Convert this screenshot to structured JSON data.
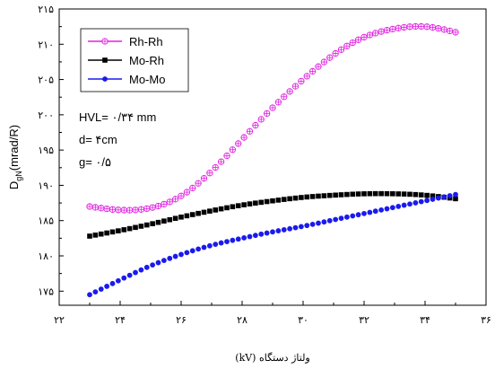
{
  "chart_data": {
    "type": "scatter",
    "xlabel": "ولتاژ دستگاه (kV)",
    "ylabel_main": "D",
    "ylabel_sub": "gN",
    "ylabel_rest": "(mrad/R)",
    "xlim": [
      22,
      36
    ],
    "ylim": [
      173,
      215
    ],
    "xticks": [
      22,
      24,
      26,
      28,
      30,
      32,
      34,
      36
    ],
    "xtick_labels": [
      "۲۲",
      "۲۴",
      "۲۶",
      "۲۸",
      "۳۰",
      "۳۲",
      "۳۴",
      "۳۶"
    ],
    "yticks": [
      175,
      180,
      185,
      190,
      195,
      200,
      205,
      210,
      215
    ],
    "ytick_labels": [
      "۱۷۵",
      "۱۸۰",
      "۱۸۵",
      "۱۹۰",
      "۱۹۵",
      "۲۰۰",
      "۲۰۵",
      "۲۱۰",
      "۲۱۵"
    ],
    "legend_position": "top-left",
    "grid": false,
    "annotations": [
      "HVL= ۰/۳۴ mm",
      "d= ۴cm",
      "g= ۰/۵"
    ],
    "series": [
      {
        "name": "Rh-Rh",
        "color": "#e020e0",
        "marker": "circle-plus",
        "x": [
          23,
          24,
          25,
          26,
          27,
          28,
          29,
          30,
          31,
          32,
          33,
          34,
          35
        ],
        "y": [
          187.0,
          186.5,
          186.8,
          188.5,
          192.0,
          196.5,
          201.0,
          205.0,
          208.5,
          211.0,
          212.2,
          212.5,
          211.7
        ]
      },
      {
        "name": "Mo-Rh",
        "color": "#000000",
        "marker": "square",
        "x": [
          23,
          24,
          25,
          26,
          27,
          28,
          29,
          30,
          31,
          32,
          33,
          34,
          35
        ],
        "y": [
          182.8,
          183.6,
          184.5,
          185.5,
          186.4,
          187.2,
          187.8,
          188.3,
          188.6,
          188.8,
          188.8,
          188.6,
          188.1
        ]
      },
      {
        "name": "Mo-Mo",
        "color": "#1a1aee",
        "marker": "circle",
        "x": [
          23,
          24,
          25,
          26,
          27,
          28,
          29,
          30,
          31,
          32,
          33,
          34,
          35
        ],
        "y": [
          174.5,
          176.6,
          178.6,
          180.2,
          181.5,
          182.5,
          183.4,
          184.2,
          185.1,
          186.0,
          186.9,
          187.8,
          188.7
        ]
      }
    ]
  }
}
